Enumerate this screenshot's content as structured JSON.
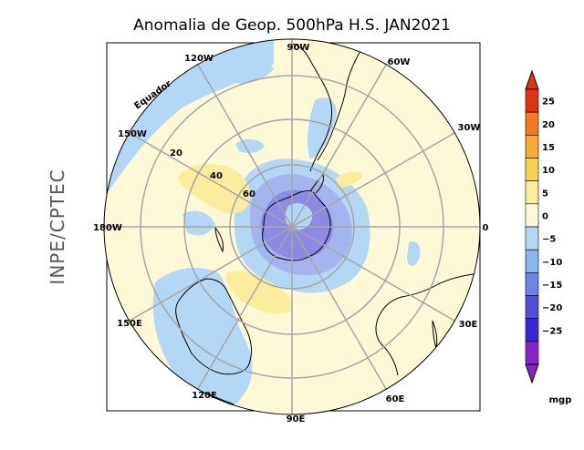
{
  "title": "Anomalia de Geop. 500hPa H.S. JAN2021",
  "side_label": "INPE/CPTEC",
  "equator_label": "Equador",
  "lon_labels": {
    "lon_90w": "90W",
    "lon_60w": "60W",
    "lon_30w": "30W",
    "lon_0": "0",
    "lon_30e": "30E",
    "lon_60e": "60E",
    "lon_90e": "90E",
    "lon_120e": "120E",
    "lon_150e": "150E",
    "lon_180w": "180W",
    "lon_150w": "150W",
    "lon_120w": "120W"
  },
  "lat_labels": {
    "lat_20": "20",
    "lat_40": "40",
    "lat_60": "60"
  },
  "colorbar": {
    "unit": "mgp",
    "ticks": [
      "25",
      "20",
      "15",
      "10",
      "5",
      "0",
      "−5",
      "−10",
      "−15",
      "−20",
      "−25"
    ],
    "colors": [
      "#dd3311",
      "#f07a22",
      "#f6ab38",
      "#f7d253",
      "#fbeb9d",
      "#fdf8d6",
      "#b3d8f5",
      "#87b5ee",
      "#6a85e4",
      "#4f4fdc",
      "#3a28d8",
      "#8a22c8"
    ]
  },
  "colors": {
    "background": "#fdf8d6",
    "neg_weak": "#b3d8f5",
    "neg_mid": "#a3b4ee",
    "neg_strong": "#8c8ae2",
    "pos_weak": "#fbeb9d"
  }
}
